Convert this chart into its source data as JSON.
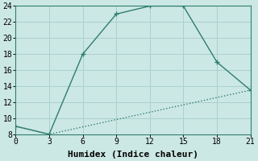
{
  "xlabel": "Humidex (Indice chaleur)",
  "ylabel": "",
  "background_color": "#cce8e4",
  "grid_color": "#aad0cc",
  "line_color": "#2e7d6e",
  "xlim": [
    0,
    21
  ],
  "ylim": [
    8,
    24
  ],
  "xticks": [
    0,
    3,
    6,
    9,
    12,
    15,
    18,
    21
  ],
  "yticks": [
    8,
    10,
    12,
    14,
    16,
    18,
    20,
    22,
    24
  ],
  "line1_x": [
    0,
    3,
    6,
    9,
    12,
    15,
    18,
    21
  ],
  "line1_y": [
    9,
    8,
    18,
    23,
    24,
    24,
    17,
    13.5
  ],
  "line2_x": [
    0,
    3,
    21
  ],
  "line2_y": [
    9,
    8,
    13.5
  ],
  "font_family": "monospace",
  "xlabel_fontsize": 8,
  "tick_fontsize": 7,
  "linewidth": 1.0,
  "markersize": 4
}
